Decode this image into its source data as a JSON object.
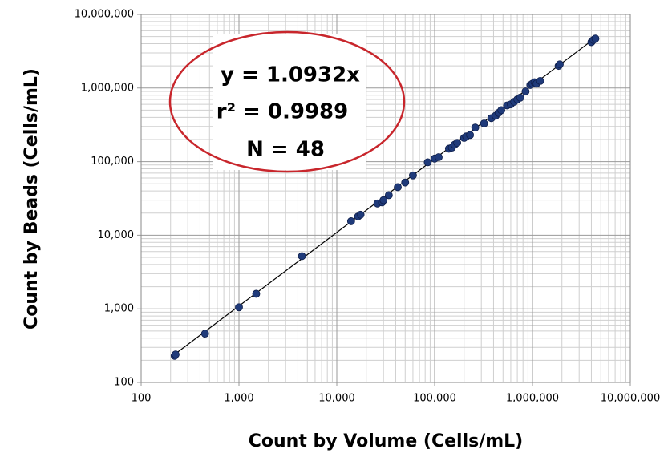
{
  "chart_data": {
    "type": "scatter",
    "xlabel": "Count by Volume (Cells/mL)",
    "ylabel": "Count by Beads (Cells/mL)",
    "xscale": "log",
    "yscale": "log",
    "grid": true,
    "minor_grid": true,
    "xlim": [
      100,
      10000000
    ],
    "ylim": [
      100,
      10000000
    ],
    "xticks": [
      100,
      {
        "value": 1000,
        "label": "1,000"
      },
      {
        "value": 10000,
        "label": "10,000"
      },
      {
        "value": 100000,
        "label": "100,000"
      },
      {
        "value": 1000000,
        "label": "1,000,000"
      },
      {
        "value": 10000000,
        "label": "10,000,000"
      }
    ],
    "yticks": [
      100,
      {
        "value": 1000,
        "label": "1,000"
      },
      {
        "value": 10000,
        "label": "10,000"
      },
      {
        "value": 100000,
        "label": "100,000"
      },
      {
        "value": 1000000,
        "label": "1,000,000"
      },
      {
        "value": 10000000,
        "label": "10,000,000"
      }
    ],
    "series": [
      {
        "color": "#1f3a7a",
        "x": [
          220,
          225,
          450,
          1000,
          1500,
          4400,
          14000,
          16500,
          17500,
          26000,
          29000,
          30000,
          34000,
          42000,
          50000,
          60000,
          85000,
          100000,
          110000,
          140000,
          150000,
          160000,
          170000,
          200000,
          210000,
          230000,
          260000,
          320000,
          380000,
          420000,
          450000,
          480000,
          550000,
          600000,
          650000,
          700000,
          750000,
          850000,
          950000,
          1000000,
          1050000,
          1100000,
          1200000,
          1850000,
          1900000,
          4000000,
          4200000,
          4400000
        ],
        "values": [
          230,
          240,
          460,
          1050,
          1600,
          5200,
          15500,
          18000,
          19000,
          27000,
          28000,
          30000,
          35000,
          45000,
          52000,
          65000,
          98000,
          110000,
          115000,
          150000,
          155000,
          170000,
          180000,
          210000,
          220000,
          230000,
          290000,
          330000,
          390000,
          420000,
          460000,
          500000,
          580000,
          600000,
          650000,
          700000,
          740000,
          900000,
          1100000,
          1150000,
          1200000,
          1150000,
          1250000,
          2000000,
          2100000,
          4200000,
          4500000,
          4700000
        ]
      }
    ],
    "trendline": {
      "color": "#000000",
      "x": [
        220,
        4400000
      ],
      "values": [
        240.5,
        4810080
      ]
    },
    "annotations": [
      "y = 1.0932x",
      "r² = 0.9989",
      "N = 48"
    ],
    "annotation_ellipse_color": "#c8262c"
  }
}
